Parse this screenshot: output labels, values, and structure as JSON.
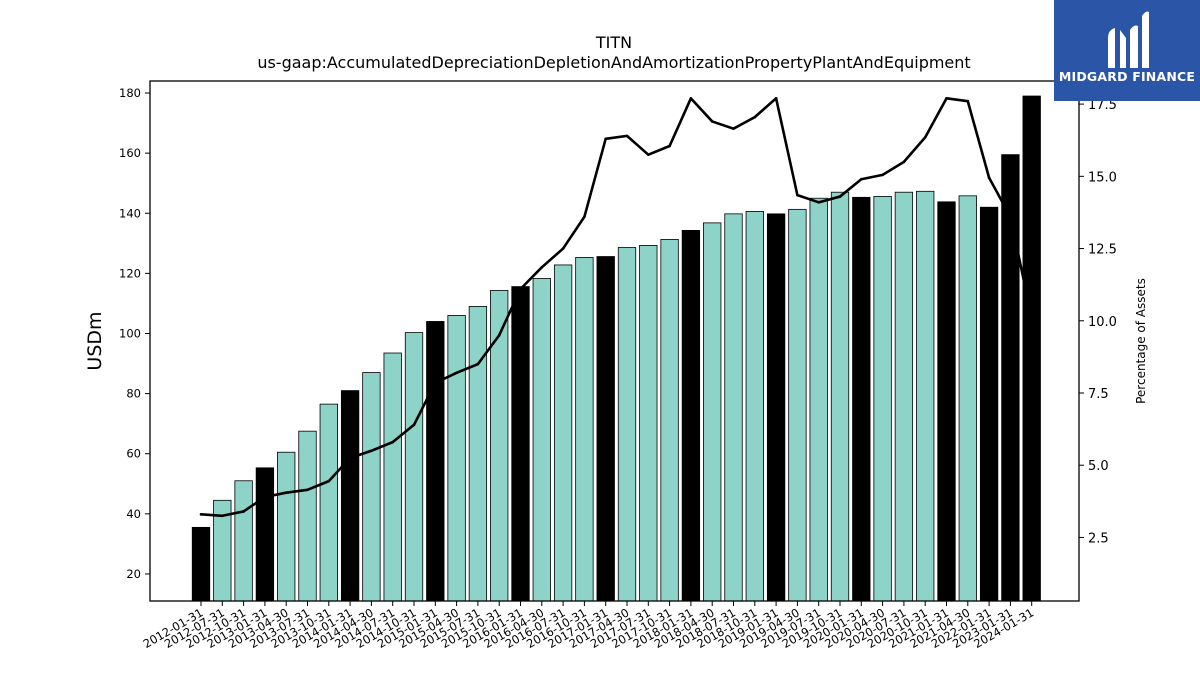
{
  "logo": {
    "text": "MIDGARD FINANCE"
  },
  "chart_data": {
    "type": "bar",
    "title": "TITN",
    "subtitle": "us-gaap:AccumulatedDepreciationDepletionAndAmortizationPropertyPlantAndEquipment",
    "ylabel": "USDm",
    "y2label": "Percentage of Assets",
    "ylim": [
      11,
      184
    ],
    "y2lim": [
      0.3,
      18.3
    ],
    "yticks": [
      20,
      40,
      60,
      80,
      100,
      120,
      140,
      160,
      180
    ],
    "y2ticks": [
      2.5,
      5.0,
      7.5,
      10.0,
      12.5,
      15.0,
      17.5
    ],
    "y2tick_labels": [
      "2.5",
      "5.0",
      "7.5",
      "10.0",
      "12.5",
      "15.0",
      "17.5"
    ],
    "grid": false,
    "categories": [
      "2012-01-31",
      "2012-07-31",
      "2012-10-31",
      "2013-01-31",
      "2013-04-30",
      "2013-07-31",
      "2013-10-31",
      "2014-01-31",
      "2014-04-30",
      "2014-07-31",
      "2014-10-31",
      "2015-01-31",
      "2015-04-30",
      "2015-07-31",
      "2015-10-31",
      "2016-01-31",
      "2016-04-30",
      "2016-07-31",
      "2016-10-31",
      "2017-01-31",
      "2017-04-30",
      "2017-07-31",
      "2017-10-31",
      "2018-01-31",
      "2018-04-30",
      "2018-07-31",
      "2018-10-31",
      "2019-01-31",
      "2019-04-30",
      "2019-07-31",
      "2019-10-31",
      "2020-01-31",
      "2020-04-30",
      "2020-07-31",
      "2020-10-31",
      "2021-01-31",
      "2021-04-30",
      "2022-01-31",
      "2023-01-31",
      "2024-01-31"
    ],
    "series": [
      {
        "kind": "bar",
        "axis": "left",
        "values": [
          35.5,
          44.5,
          51,
          55.3,
          60.5,
          67.5,
          76.5,
          81,
          87,
          93.5,
          100.3,
          104,
          106,
          109,
          114.3,
          115.6,
          118.3,
          122.8,
          125.3,
          125.6,
          128.6,
          129.3,
          131.3,
          134.3,
          136.8,
          139.8,
          140.6,
          139.8,
          141.3,
          145,
          147,
          145.3,
          145.6,
          147,
          147.3,
          143.8,
          145.8,
          142,
          159.5,
          179
        ],
        "highlight": [
          1,
          0,
          0,
          1,
          0,
          0,
          0,
          1,
          0,
          0,
          0,
          1,
          0,
          0,
          0,
          1,
          0,
          0,
          0,
          1,
          0,
          0,
          0,
          1,
          0,
          0,
          0,
          1,
          0,
          0,
          0,
          1,
          0,
          0,
          0,
          1,
          0,
          1,
          1,
          1
        ]
      },
      {
        "kind": "line",
        "axis": "right",
        "values": [
          3.3,
          3.25,
          3.4,
          3.9,
          4.05,
          4.15,
          4.45,
          5.25,
          5.5,
          5.8,
          6.4,
          7.85,
          8.2,
          8.5,
          9.5,
          11.1,
          11.85,
          12.5,
          13.6,
          16.3,
          16.4,
          15.75,
          16.05,
          17.7,
          16.9,
          16.65,
          17.05,
          17.7,
          14.35,
          14.1,
          14.3,
          14.9,
          15.05,
          15.5,
          16.35,
          17.7,
          17.6,
          14.95,
          13.6,
          10.1
        ]
      }
    ],
    "colors": {
      "bar": "#8dd3c7",
      "highlight_bar": "#000000",
      "line": "#000000"
    }
  }
}
